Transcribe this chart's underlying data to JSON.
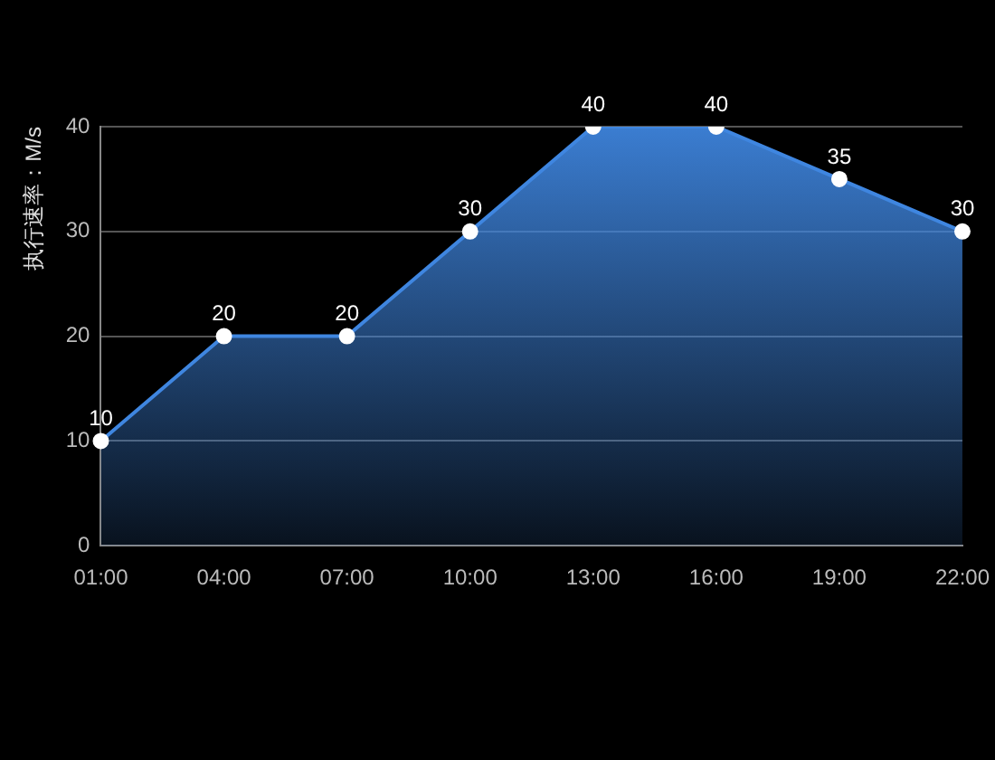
{
  "chart_data": {
    "type": "area",
    "ylabel": "执行速率：M/s",
    "categories": [
      "01:00",
      "04:00",
      "07:00",
      "10:00",
      "13:00",
      "16:00",
      "19:00",
      "22:00"
    ],
    "series": [
      {
        "color": "#3f86e0",
        "values": [
          10,
          20,
          20,
          30,
          40,
          40,
          35,
          30
        ]
      }
    ],
    "ylim": [
      0,
      40
    ],
    "yticks": [
      0,
      10,
      20,
      30,
      40
    ],
    "grid": "y",
    "marker": "circle",
    "data_labels": true,
    "legend": false
  }
}
